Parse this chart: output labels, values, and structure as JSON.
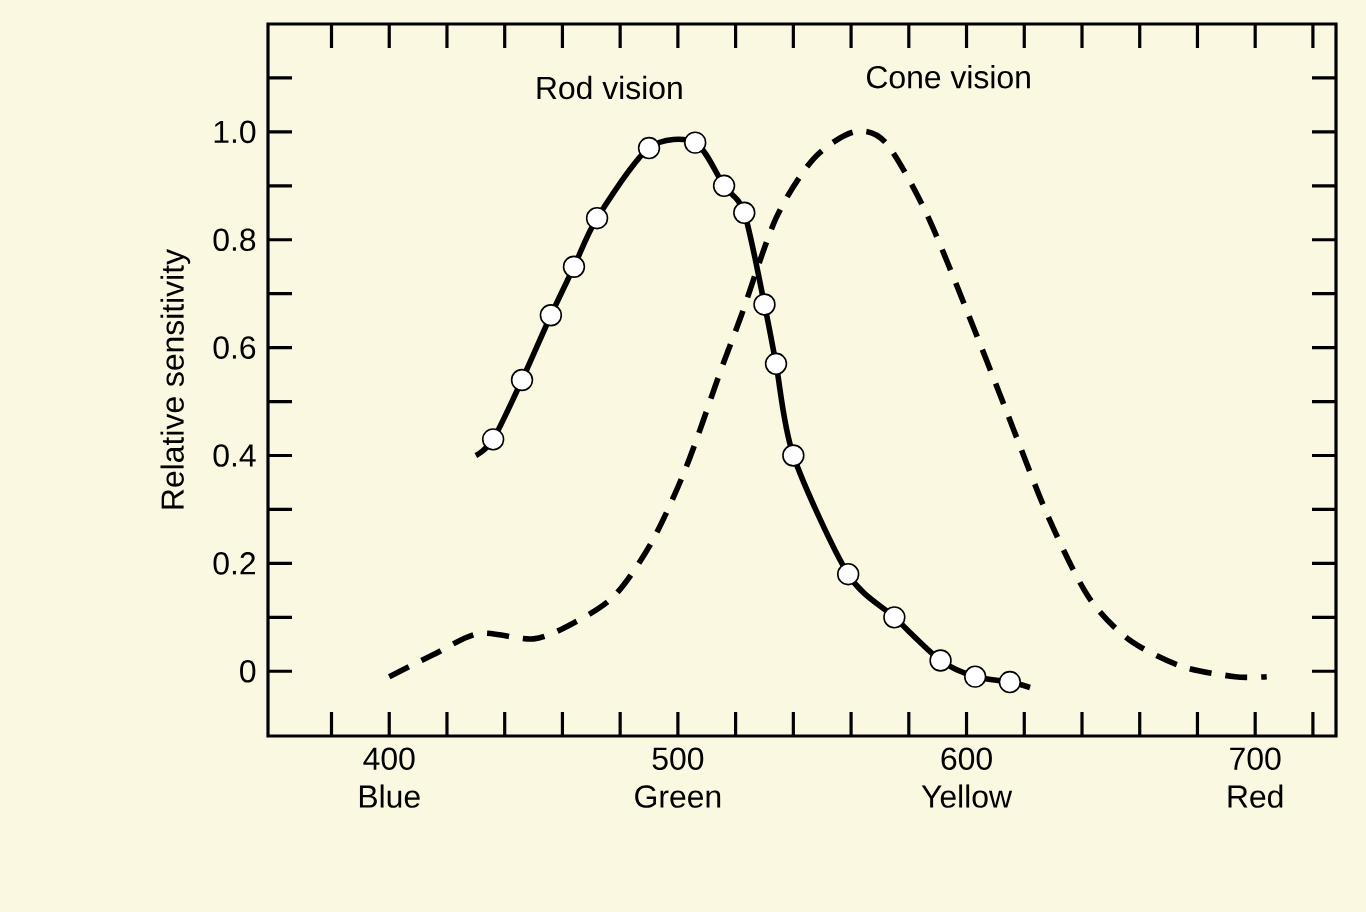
{
  "chart_data": {
    "type": "line",
    "xlabel": null,
    "ylabel": "Relative sensitivity",
    "xlim": [
      358,
      728
    ],
    "ylim": [
      -0.12,
      1.2
    ],
    "xticks": [
      {
        "value": 380,
        "label": null
      },
      {
        "value": 400,
        "label": "400 Blue"
      },
      {
        "value": 420,
        "label": null
      },
      {
        "value": 440,
        "label": null
      },
      {
        "value": 460,
        "label": null
      },
      {
        "value": 480,
        "label": null
      },
      {
        "value": 500,
        "label": "500 Green"
      },
      {
        "value": 520,
        "label": null
      },
      {
        "value": 540,
        "label": null
      },
      {
        "value": 560,
        "label": null
      },
      {
        "value": 580,
        "label": null
      },
      {
        "value": 600,
        "label": "600 Yellow"
      },
      {
        "value": 620,
        "label": null
      },
      {
        "value": 640,
        "label": null
      },
      {
        "value": 660,
        "label": null
      },
      {
        "value": 680,
        "label": null
      },
      {
        "value": 700,
        "label": "700 Red"
      },
      {
        "value": 720,
        "label": null
      }
    ],
    "yticks": [
      0,
      {
        "value": 0.1,
        "label": null
      },
      {
        "value": 0.2,
        "label": "0.2"
      },
      {
        "value": 0.3,
        "label": null
      },
      {
        "value": 0.4,
        "label": "0.4"
      },
      {
        "value": 0.5,
        "label": null
      },
      {
        "value": 0.6,
        "label": "0.6"
      },
      {
        "value": 0.7,
        "label": null
      },
      {
        "value": 0.8,
        "label": "0.8"
      },
      {
        "value": 0.9,
        "label": null
      },
      {
        "value": 1.0,
        "label": "1.0"
      },
      {
        "value": 1.1,
        "label": null
      }
    ],
    "annotations": [
      {
        "text": "Rod vision",
        "x": 506,
        "y": 0.98
      },
      {
        "text": "Cone vision",
        "x": 561,
        "y": 1.0
      }
    ],
    "series": [
      {
        "color": "#000000",
        "line_style": "solid",
        "marker": "none",
        "x": [
          430,
          436,
          446,
          456,
          464,
          472,
          490,
          506,
          516,
          523,
          530,
          534,
          540,
          559,
          575,
          591,
          603,
          615,
          622
        ],
        "values": [
          0.4,
          0.43,
          0.54,
          0.66,
          0.75,
          0.84,
          0.97,
          0.98,
          0.9,
          0.85,
          0.68,
          0.57,
          0.4,
          0.18,
          0.1,
          0.02,
          -0.01,
          -0.02,
          -0.03
        ]
      },
      {
        "type": "scatter",
        "color": "#000000",
        "marker": "circle",
        "x": [
          436,
          446,
          456,
          464,
          472,
          490,
          506,
          516,
          523,
          530,
          534,
          540,
          559,
          575,
          591,
          603,
          615
        ],
        "values": [
          0.43,
          0.54,
          0.66,
          0.75,
          0.84,
          0.97,
          0.98,
          0.9,
          0.85,
          0.68,
          0.57,
          0.4,
          0.18,
          0.1,
          0.02,
          -0.01,
          -0.02
        ]
      },
      {
        "color": "#000000",
        "line_style": "dashed",
        "marker": "none",
        "x": [
          400,
          415,
          431,
          450,
          464,
          478,
          491,
          503,
          515,
          522,
          534,
          547,
          561,
          572,
          586,
          600,
          614,
          628,
          642,
          656,
          674,
          693,
          704
        ],
        "values": [
          -0.01,
          0.03,
          0.07,
          0.06,
          0.09,
          0.14,
          0.24,
          0.38,
          0.56,
          0.66,
          0.84,
          0.95,
          1.0,
          0.98,
          0.85,
          0.67,
          0.48,
          0.29,
          0.14,
          0.06,
          0.01,
          -0.01,
          -0.01
        ]
      }
    ]
  }
}
